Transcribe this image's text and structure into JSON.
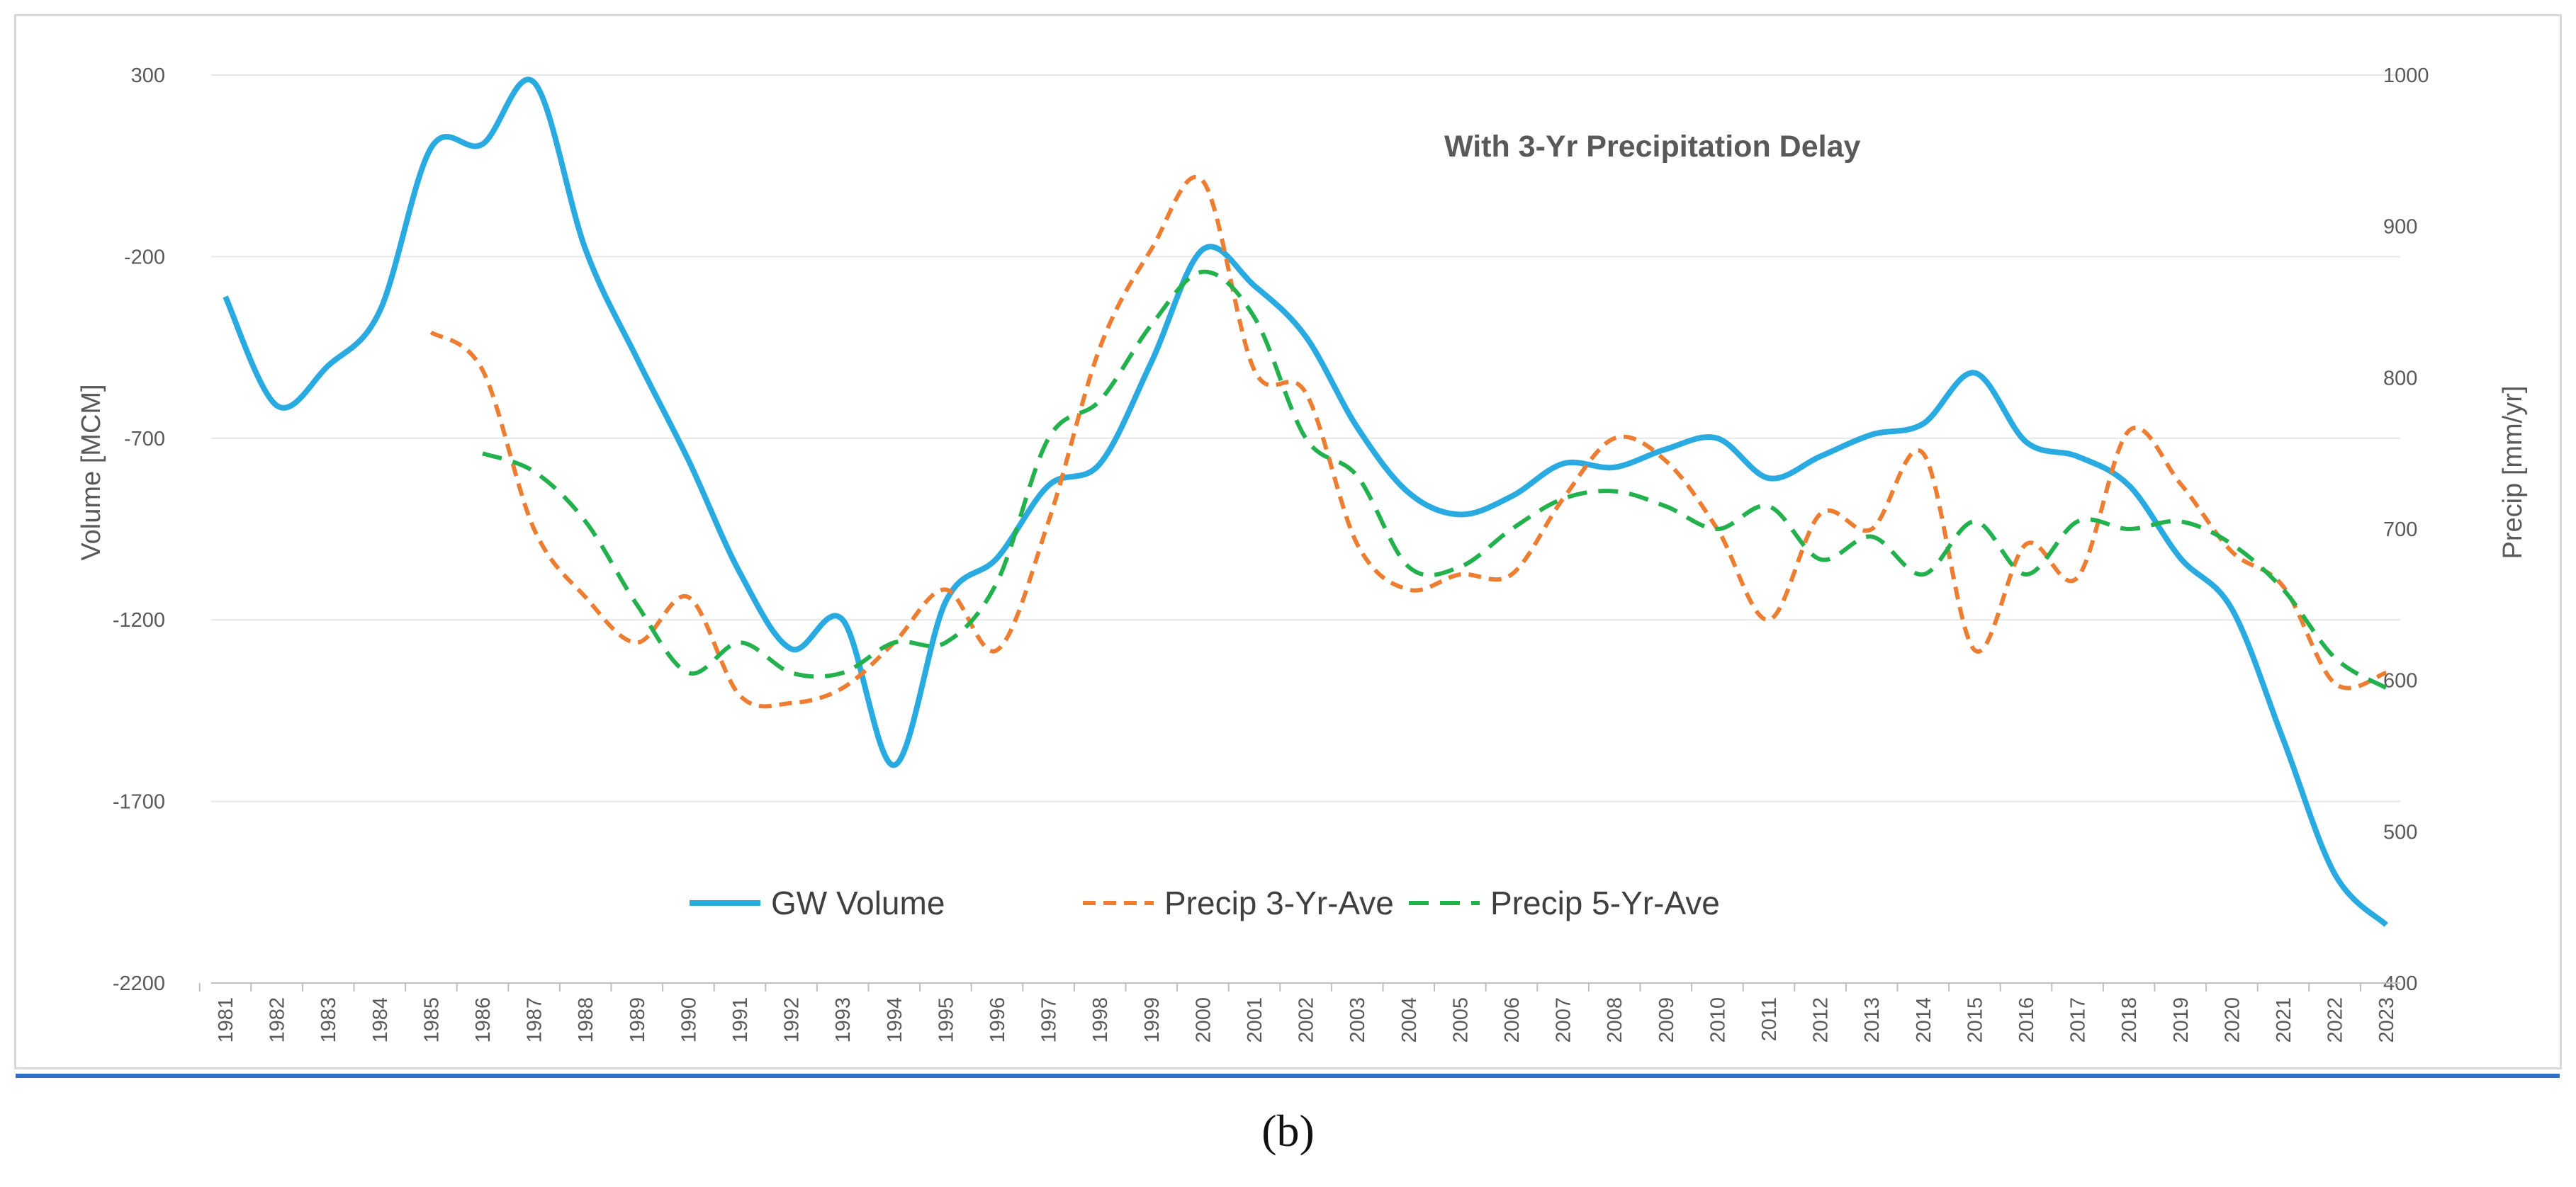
{
  "caption": "(b)",
  "chart_data": {
    "type": "line",
    "title": "With 3-Yr Precipitation Delay",
    "ylabel": "Volume [MCM]",
    "y2label": "Precip [mm/yr]",
    "ylim": [
      -2200,
      300
    ],
    "y2lim": [
      400,
      1000
    ],
    "yticks": [
      "300",
      "-200",
      "-700",
      "-1200",
      "-1700",
      "-2200"
    ],
    "y2ticks": [
      "1000",
      "900",
      "800",
      "700",
      "600",
      "500",
      "400"
    ],
    "categories": [
      "1981",
      "1982",
      "1983",
      "1984",
      "1985",
      "1986",
      "1987",
      "1988",
      "1989",
      "1990",
      "1991",
      "1992",
      "1993",
      "1994",
      "1995",
      "1996",
      "1997",
      "1998",
      "1999",
      "2000",
      "2001",
      "2002",
      "2003",
      "2004",
      "2005",
      "2006",
      "2007",
      "2008",
      "2009",
      "2010",
      "2011",
      "2012",
      "2013",
      "2014",
      "2015",
      "2016",
      "2017",
      "2018",
      "2019",
      "2020",
      "2021",
      "2022",
      "2023"
    ],
    "legend_position": "bottom-center",
    "series": [
      {
        "name": "GW Volume",
        "axis": "left",
        "color": "#29abe2",
        "style": "solid",
        "values": [
          -310,
          -610,
          -500,
          -350,
          100,
          110,
          280,
          -180,
          -480,
          -760,
          -1070,
          -1280,
          -1200,
          -1600,
          -1150,
          -1030,
          -830,
          -770,
          -490,
          -180,
          -280,
          -420,
          -670,
          -850,
          -910,
          -860,
          -770,
          -780,
          -730,
          -700,
          -810,
          -750,
          -690,
          -660,
          -520,
          -710,
          -750,
          -830,
          -1030,
          -1170,
          -1530,
          -1900,
          -2040
        ]
      },
      {
        "name": "Precip 3-Yr-Ave",
        "axis": "right",
        "color": "#ed7d31",
        "style": "dash",
        "values": [
          null,
          null,
          null,
          null,
          830,
          805,
          700,
          655,
          625,
          655,
          590,
          585,
          595,
          625,
          660,
          620,
          705,
          820,
          885,
          930,
          805,
          790,
          690,
          660,
          670,
          670,
          720,
          760,
          745,
          700,
          640,
          710,
          700,
          750,
          620,
          690,
          668,
          765,
          730,
          685,
          662,
          598,
          605
        ]
      },
      {
        "name": "Precip 5-Yr-Ave",
        "axis": "right",
        "color": "#22b14c",
        "style": "dash",
        "values": [
          null,
          null,
          null,
          null,
          null,
          750,
          738,
          705,
          650,
          605,
          625,
          605,
          605,
          625,
          625,
          665,
          760,
          785,
          835,
          870,
          840,
          760,
          735,
          675,
          675,
          700,
          720,
          725,
          715,
          700,
          715,
          680,
          695,
          670,
          705,
          670,
          705,
          700,
          705,
          690,
          660,
          615,
          595
        ]
      }
    ]
  }
}
